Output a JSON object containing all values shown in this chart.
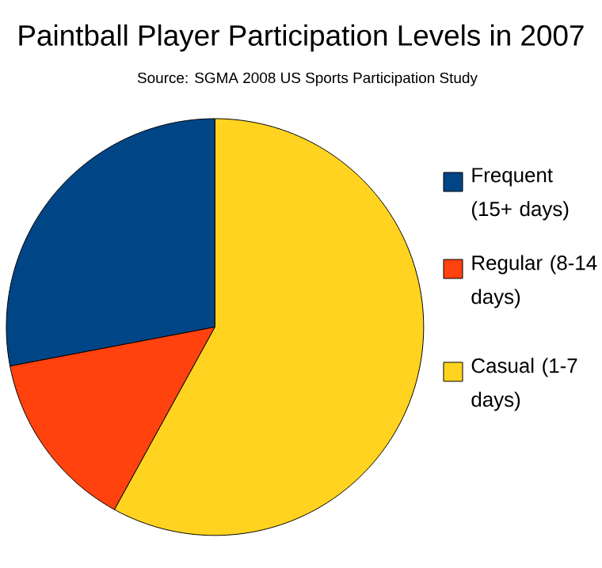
{
  "chart_data": {
    "type": "pie",
    "title": "Paintball Player Participation Levels in 2007",
    "subtitle": "Source: SGMA 2008 US Sports Participation Study",
    "categories": [
      "Frequent (15+ days)",
      "Regular (8-14 days)",
      "Casual (1-7 days)"
    ],
    "values": [
      28,
      14,
      58
    ],
    "colors": [
      "#004586",
      "#ff420e",
      "#ffd320"
    ],
    "legend": "right"
  }
}
